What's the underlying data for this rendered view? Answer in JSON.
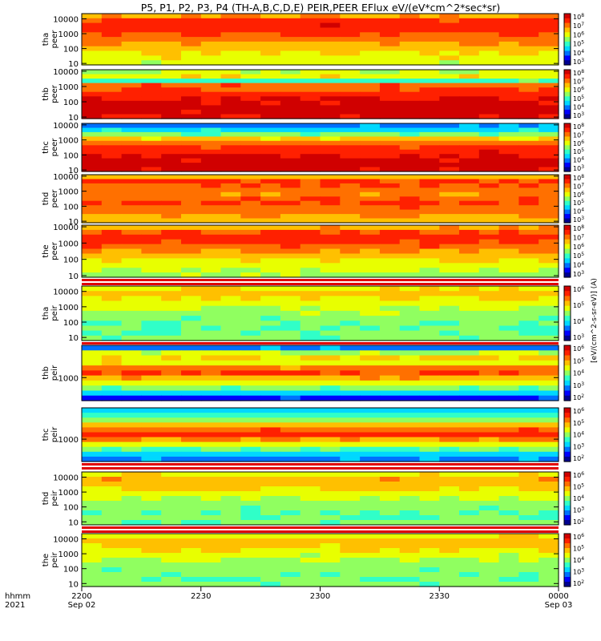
{
  "title": "P5, P1, P2, P3, P4 (TH-A,B,C,D,E) PEIR,PEER EFlux eV/(eV*cm^2*sec*sr)",
  "time_axis": {
    "row1_label": "hhmm",
    "row2_label": "2021",
    "ticks": [
      {
        "label": "2200",
        "sub": "Sep 02"
      },
      {
        "label": "2230",
        "sub": ""
      },
      {
        "label": "2300",
        "sub": ""
      },
      {
        "label": "2330",
        "sub": ""
      },
      {
        "label": "0000",
        "sub": "Sep 03"
      }
    ]
  },
  "colorbar_unit_label": "[eV/(cm^2-s-sr-eV)] (A)",
  "colors": {
    "colormap": [
      "#000090",
      "#0000ff",
      "#0070ff",
      "#00d8ff",
      "#30ffc8",
      "#90ff60",
      "#e8ff00",
      "#ffc000",
      "#ff7000",
      "#ff2000",
      "#d00000"
    ]
  },
  "chart_data": [
    {
      "type": "heatmap",
      "probe": "tha",
      "label": "tha peer",
      "ylabel_top": "tha",
      "ylabel_bottom": "peer",
      "y_scale": "log",
      "y_ticks": [
        "10",
        "100",
        "1000",
        "10000"
      ],
      "colorbar_ticks": [
        "10^3",
        "10^4",
        "10^5",
        "10^6",
        "10^7",
        "10^8"
      ],
      "x_range": [
        "2200",
        "0000"
      ]
    },
    {
      "type": "heatmap",
      "probe": "thb",
      "label": "thb peer",
      "ylabel_top": "thb",
      "ylabel_bottom": "peer",
      "y_scale": "log",
      "y_ticks": [
        "10",
        "100",
        "1000",
        "10000"
      ],
      "colorbar_ticks": [
        "10^3",
        "10^4",
        "10^5",
        "10^6",
        "10^7",
        "10^8"
      ],
      "x_range": [
        "2200",
        "0000"
      ]
    },
    {
      "type": "heatmap",
      "probe": "thc",
      "label": "thc peer",
      "ylabel_top": "thc",
      "ylabel_bottom": "peer",
      "y_scale": "log",
      "y_ticks": [
        "10",
        "100",
        "1000",
        "10000"
      ],
      "colorbar_ticks": [
        "10^3",
        "10^4",
        "10^5",
        "10^6",
        "10^7",
        "10^8"
      ],
      "x_range": [
        "2200",
        "0000"
      ]
    },
    {
      "type": "heatmap",
      "probe": "thd",
      "label": "thd peer",
      "ylabel_top": "thd",
      "ylabel_bottom": "peer",
      "y_scale": "log",
      "y_ticks": [
        "10",
        "100",
        "1000",
        "10000"
      ],
      "colorbar_ticks": [
        "10^3",
        "10^4",
        "10^5",
        "10^6",
        "10^7",
        "10^8"
      ],
      "x_range": [
        "2200",
        "0000"
      ]
    },
    {
      "type": "heatmap",
      "probe": "the",
      "label": "the peer",
      "ylabel_top": "the",
      "ylabel_bottom": "peer",
      "y_scale": "log",
      "y_ticks": [
        "10",
        "100",
        "1000",
        "10000"
      ],
      "colorbar_ticks": [
        "10^3",
        "10^4",
        "10^5",
        "10^6",
        "10^7",
        "10^8"
      ],
      "x_range": [
        "2200",
        "0000"
      ]
    },
    {
      "type": "heatmap",
      "probe": "tha",
      "label": "tha peir",
      "ylabel_top": "tha",
      "ylabel_bottom": "peir",
      "y_scale": "log",
      "y_ticks": [
        "10",
        "100",
        "1000",
        "10000"
      ],
      "colorbar_ticks": [
        "10^3",
        "10^4",
        "10^5",
        "10^6"
      ],
      "x_range": [
        "2200",
        "0000"
      ]
    },
    {
      "type": "heatmap",
      "probe": "thb",
      "label": "thb peir",
      "ylabel_top": "thb",
      "ylabel_bottom": "peir",
      "y_scale": "log",
      "y_ticks": [
        "1000"
      ],
      "colorbar_ticks": [
        "10^2",
        "10^3",
        "10^4",
        "10^5",
        "10^6"
      ],
      "x_range": [
        "2200",
        "0000"
      ]
    },
    {
      "type": "heatmap",
      "probe": "thc",
      "label": "thc peir",
      "ylabel_top": "thc",
      "ylabel_bottom": "peir",
      "y_scale": "log",
      "y_ticks": [
        "1000"
      ],
      "colorbar_ticks": [
        "10^2",
        "10^3",
        "10^4",
        "10^5",
        "10^6"
      ],
      "x_range": [
        "2200",
        "0000"
      ]
    },
    {
      "type": "heatmap",
      "probe": "thd",
      "label": "thd peir",
      "ylabel_top": "thd",
      "ylabel_bottom": "peir",
      "y_scale": "log",
      "y_ticks": [
        "10",
        "100",
        "1000",
        "10000"
      ],
      "colorbar_ticks": [
        "10^2",
        "10^3",
        "10^4",
        "10^5",
        "10^6"
      ],
      "x_range": [
        "2200",
        "0000"
      ]
    },
    {
      "type": "heatmap",
      "probe": "the",
      "label": "the peir",
      "ylabel_top": "the",
      "ylabel_bottom": "peir",
      "y_scale": "log",
      "y_ticks": [
        "10",
        "100",
        "1000",
        "10000"
      ],
      "colorbar_ticks": [
        "10^2",
        "10^3",
        "10^4",
        "10^5",
        "10^6"
      ],
      "x_range": [
        "2200",
        "0000"
      ]
    }
  ]
}
